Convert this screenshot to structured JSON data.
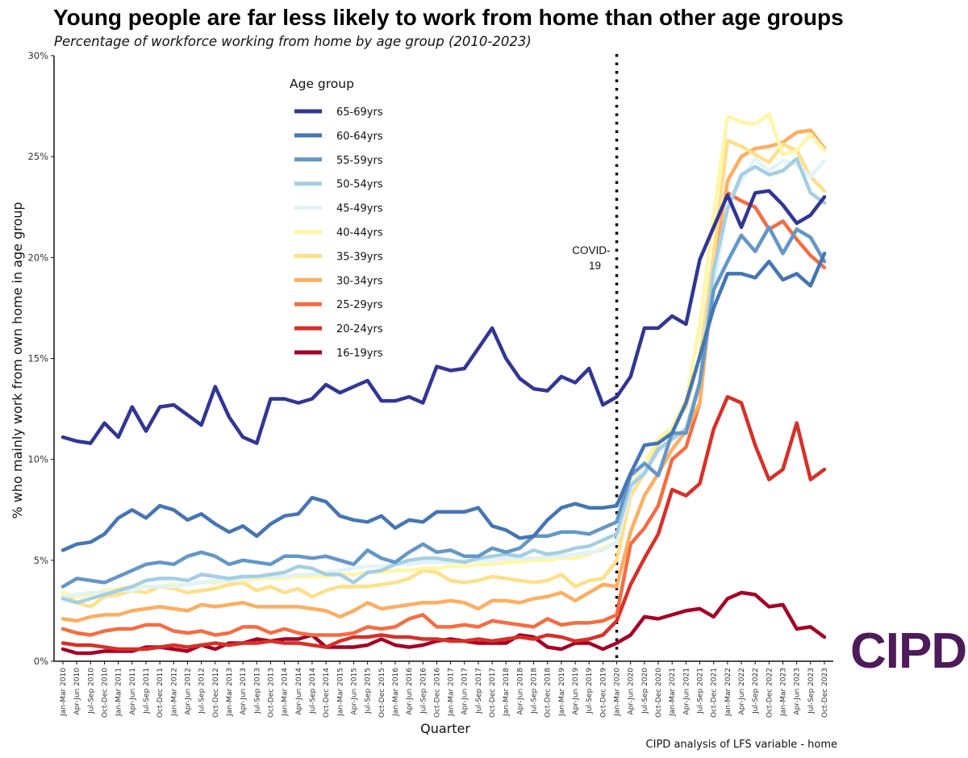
{
  "header": {
    "title": "Young people are far less likely to work from home than other age groups",
    "subtitle": "Percentage of workforce working from home by age group (2010-2023)"
  },
  "footer": {
    "source": "CIPD analysis of LFS variable - home"
  },
  "brand": {
    "logo_text": "CIPD",
    "logo_color": "#4e1a5a"
  },
  "chart_data": {
    "type": "line",
    "title": "Young people are far less likely to work from home than other age groups",
    "subtitle": "Percentage of workforce working from home by age group (2010-2023)",
    "xlabel": "Quarter",
    "ylabel": "% who mainly work from own home in age group",
    "ylim": [
      0,
      30
    ],
    "yticks": [
      "0%",
      "5%",
      "10%",
      "15%",
      "20%",
      "25%",
      "30%"
    ],
    "legend_title": "Age group",
    "legend_position": "top-left",
    "annotation": {
      "text_line1": "COVID-",
      "text_line2": "19",
      "category": "Jan-Mar 2020"
    },
    "categories": [
      "Jan-Mar 2010",
      "Apr-Jun 2010",
      "Jul-Sep 2010",
      "Oct-Dec 2010",
      "Jan-Mar 2011",
      "Apr-Jun 2011",
      "Jul-Sep 2011",
      "Oct-Dec 2011",
      "Jan-Mar 2012",
      "Apr-Jun 2012",
      "Jul-Sep 2012",
      "Oct-Dec 2012",
      "Jan-Mar 2013",
      "Apr-Jun 2013",
      "Jul-Sep 2013",
      "Oct-Dec 2013",
      "Jan-Mar 2014",
      "Apr-Jun 2014",
      "Jul-Sep 2014",
      "Oct-Dec 2014",
      "Jan-Mar 2015",
      "Apr-Jun 2015",
      "Jul-Sep 2015",
      "Oct-Dec 2015",
      "Jan-Mar 2016",
      "Apr-Jun 2016",
      "Jul-Sep 2016",
      "Oct-Dec 2016",
      "Jan-Mar 2017",
      "Apr-Jun 2017",
      "Jul-Sep 2017",
      "Oct-Dec 2017",
      "Jan-Mar 2018",
      "Apr-Jun 2018",
      "Jul-Sep 2018",
      "Oct-Dec 2018",
      "Jan-Mar 2019",
      "Apr-Jun 2019",
      "Jul-Sep 2019",
      "Oct-Dec 2019",
      "Jan-Mar 2020",
      "Apr-Jun 2020",
      "Jul-Sep 2020",
      "Oct-Dec 2020",
      "Jan-Mar 2021",
      "Apr-Jun 2021",
      "Jul-Sep 2021",
      "Oct-Dec 2021",
      "Jan-Mar 2022",
      "Apr-Jun 2022",
      "Jul-Sep 2022",
      "Oct-Dec 2022",
      "Jan-Mar 2023",
      "Apr-Jun 2023",
      "Jul-Sep 2023",
      "Oct-Dec 2023"
    ],
    "series": [
      {
        "name": "65-69yrs",
        "color": "#313695",
        "values": [
          11.1,
          10.9,
          10.8,
          11.8,
          11.1,
          12.6,
          11.4,
          12.6,
          12.7,
          12.2,
          11.7,
          13.6,
          12.1,
          11.1,
          10.8,
          13.0,
          13.0,
          12.8,
          13.0,
          13.7,
          13.3,
          13.6,
          13.9,
          12.9,
          12.9,
          13.1,
          12.8,
          14.6,
          14.4,
          14.5,
          15.5,
          16.5,
          15.0,
          14.0,
          13.5,
          13.4,
          14.1,
          13.8,
          14.5,
          12.7,
          13.1,
          14.1,
          16.5,
          16.5,
          17.1,
          16.7,
          19.9,
          21.5,
          23.1,
          21.5,
          23.2,
          23.3,
          22.6,
          21.7,
          22.1,
          23.0
        ]
      },
      {
        "name": "60-64yrs",
        "color": "#4575b4",
        "values": [
          5.5,
          5.8,
          5.9,
          6.3,
          7.1,
          7.5,
          7.1,
          7.7,
          7.5,
          7.0,
          7.3,
          6.8,
          6.4,
          6.7,
          6.2,
          6.8,
          7.2,
          7.3,
          8.1,
          7.9,
          7.2,
          7.0,
          6.9,
          7.2,
          6.6,
          7.0,
          6.9,
          7.4,
          7.4,
          7.4,
          7.6,
          6.7,
          6.5,
          6.1,
          6.2,
          7.0,
          7.6,
          7.8,
          7.6,
          7.6,
          7.7,
          9.3,
          10.7,
          10.8,
          11.3,
          12.8,
          15.1,
          17.5,
          19.2,
          19.2,
          19.0,
          19.8,
          18.9,
          19.2,
          18.6,
          20.2
        ]
      },
      {
        "name": "55-59yrs",
        "color": "#6497c7",
        "values": [
          3.7,
          4.1,
          4.0,
          3.9,
          4.2,
          4.5,
          4.8,
          4.9,
          4.8,
          5.2,
          5.4,
          5.2,
          4.8,
          5.0,
          4.9,
          4.8,
          5.2,
          5.2,
          5.1,
          5.2,
          5.0,
          4.8,
          5.5,
          5.1,
          4.9,
          5.4,
          5.8,
          5.4,
          5.5,
          5.2,
          5.2,
          5.6,
          5.4,
          5.6,
          6.2,
          6.2,
          6.4,
          6.4,
          6.3,
          6.6,
          6.9,
          9.2,
          9.8,
          9.2,
          11.3,
          11.3,
          13.8,
          18.4,
          19.8,
          21.1,
          20.3,
          21.5,
          20.2,
          21.4,
          21.0,
          19.8
        ]
      },
      {
        "name": "50-54yrs",
        "color": "#a6cee3",
        "values": [
          3.1,
          2.9,
          3.1,
          3.3,
          3.5,
          3.7,
          4.0,
          4.1,
          4.1,
          4.0,
          4.3,
          4.2,
          4.1,
          4.2,
          4.2,
          4.3,
          4.4,
          4.7,
          4.6,
          4.3,
          4.3,
          3.9,
          4.4,
          4.5,
          4.8,
          5.0,
          5.1,
          5.1,
          5.0,
          4.9,
          5.1,
          5.2,
          5.3,
          5.2,
          5.5,
          5.3,
          5.4,
          5.6,
          5.7,
          6.0,
          6.3,
          8.7,
          9.3,
          10.5,
          11.0,
          11.5,
          13.8,
          19.4,
          22.4,
          24.1,
          24.5,
          24.1,
          24.3,
          24.9,
          23.2,
          22.7
        ]
      },
      {
        "name": "45-49yrs",
        "color": "#e0f3f8",
        "values": [
          3.2,
          3.3,
          3.4,
          3.4,
          3.5,
          3.5,
          3.7,
          3.7,
          3.7,
          3.8,
          3.9,
          4.0,
          4.0,
          4.1,
          4.2,
          4.2,
          4.2,
          4.3,
          4.3,
          4.4,
          4.5,
          4.6,
          4.7,
          4.7,
          4.8,
          4.8,
          4.9,
          4.9,
          4.9,
          5.0,
          5.0,
          5.0,
          5.1,
          5.1,
          5.1,
          5.2,
          5.2,
          5.3,
          5.4,
          5.5,
          5.9,
          8.5,
          9.6,
          10.3,
          11.0,
          11.5,
          14.0,
          18.4,
          22.7,
          23.8,
          24.9,
          24.3,
          24.8,
          24.6,
          24.0,
          24.8
        ]
      },
      {
        "name": "40-44yrs",
        "color": "#fff6a8",
        "values": [
          3.4,
          3.2,
          3.3,
          3.5,
          3.6,
          3.7,
          3.7,
          3.7,
          3.8,
          3.8,
          3.9,
          3.9,
          4.0,
          4.0,
          4.1,
          4.1,
          4.1,
          4.2,
          4.2,
          4.2,
          4.3,
          4.3,
          4.4,
          4.4,
          4.5,
          4.5,
          4.6,
          4.6,
          4.7,
          4.7,
          4.8,
          4.8,
          4.9,
          4.9,
          5.0,
          5.0,
          5.1,
          5.1,
          5.3,
          5.6,
          5.9,
          8.7,
          9.8,
          11.0,
          11.6,
          12.9,
          16.7,
          22.1,
          27.0,
          26.7,
          26.6,
          27.1,
          25.1,
          25.3,
          26.1,
          25.3
        ]
      },
      {
        "name": "35-39yrs",
        "color": "#fee08b",
        "values": [
          3.4,
          2.9,
          2.7,
          3.2,
          3.3,
          3.5,
          3.4,
          3.7,
          3.6,
          3.4,
          3.5,
          3.6,
          3.8,
          3.9,
          3.5,
          3.7,
          3.4,
          3.6,
          3.2,
          3.5,
          3.7,
          3.7,
          3.7,
          3.8,
          3.9,
          4.1,
          4.5,
          4.4,
          4.0,
          3.9,
          4.0,
          4.2,
          4.1,
          4.0,
          3.9,
          4.0,
          4.3,
          3.7,
          4.0,
          4.1,
          5.0,
          8.2,
          9.3,
          10.8,
          11.6,
          12.6,
          15.1,
          20.2,
          25.8,
          25.5,
          25.1,
          24.7,
          25.6,
          25.3,
          24.0,
          23.3
        ]
      },
      {
        "name": "30-34yrs",
        "color": "#fdae61",
        "values": [
          2.1,
          2.0,
          2.2,
          2.3,
          2.3,
          2.5,
          2.6,
          2.7,
          2.6,
          2.5,
          2.8,
          2.7,
          2.8,
          2.9,
          2.7,
          2.7,
          2.7,
          2.7,
          2.6,
          2.5,
          2.2,
          2.5,
          2.9,
          2.6,
          2.7,
          2.8,
          2.9,
          2.9,
          3.0,
          2.9,
          2.6,
          3.0,
          3.0,
          2.9,
          3.1,
          3.2,
          3.4,
          3.0,
          3.4,
          3.8,
          3.7,
          6.4,
          8.2,
          9.3,
          10.5,
          11.4,
          12.8,
          19.3,
          23.8,
          25.0,
          25.4,
          25.5,
          25.7,
          26.2,
          26.3,
          25.4
        ]
      },
      {
        "name": "25-29yrs",
        "color": "#f46d43",
        "values": [
          1.6,
          1.4,
          1.3,
          1.5,
          1.6,
          1.6,
          1.8,
          1.8,
          1.5,
          1.4,
          1.5,
          1.3,
          1.4,
          1.7,
          1.7,
          1.4,
          1.6,
          1.4,
          1.3,
          1.3,
          1.3,
          1.4,
          1.7,
          1.6,
          1.7,
          2.1,
          2.3,
          1.7,
          1.7,
          1.8,
          1.7,
          2.0,
          1.9,
          1.8,
          1.7,
          2.1,
          1.8,
          1.9,
          1.9,
          2.0,
          2.3,
          5.8,
          6.6,
          7.7,
          10.0,
          10.6,
          12.8,
          19.2,
          23.2,
          22.8,
          22.5,
          21.4,
          21.8,
          20.9,
          20.1,
          19.5
        ]
      },
      {
        "name": "20-24yrs",
        "color": "#d73027",
        "values": [
          0.9,
          0.8,
          0.8,
          0.7,
          0.6,
          0.6,
          0.6,
          0.7,
          0.8,
          0.7,
          0.8,
          0.9,
          0.8,
          0.9,
          0.9,
          1.0,
          0.9,
          0.9,
          0.8,
          0.7,
          1.0,
          1.2,
          1.2,
          1.3,
          1.2,
          1.2,
          1.1,
          1.1,
          1.0,
          1.0,
          1.1,
          1.0,
          1.1,
          1.2,
          1.1,
          1.3,
          1.2,
          1.0,
          1.1,
          1.3,
          2.0,
          3.8,
          5.1,
          6.3,
          8.5,
          8.2,
          8.8,
          11.5,
          13.1,
          12.8,
          10.7,
          9.0,
          9.5,
          11.8,
          9.0,
          9.5
        ]
      },
      {
        "name": "16-19yrs",
        "color": "#a50026",
        "values": [
          0.6,
          0.4,
          0.4,
          0.5,
          0.5,
          0.5,
          0.7,
          0.7,
          0.6,
          0.5,
          0.8,
          0.6,
          0.9,
          0.9,
          1.1,
          1.0,
          1.1,
          1.1,
          1.3,
          0.7,
          0.7,
          0.7,
          0.8,
          1.1,
          0.8,
          0.7,
          0.8,
          1.0,
          1.1,
          1.0,
          0.9,
          0.9,
          0.9,
          1.3,
          1.2,
          0.7,
          0.6,
          0.9,
          0.9,
          0.6,
          0.9,
          1.3,
          2.2,
          2.1,
          2.3,
          2.5,
          2.6,
          2.2,
          3.1,
          3.4,
          3.3,
          2.7,
          2.8,
          1.6,
          1.7,
          1.2
        ]
      }
    ]
  }
}
